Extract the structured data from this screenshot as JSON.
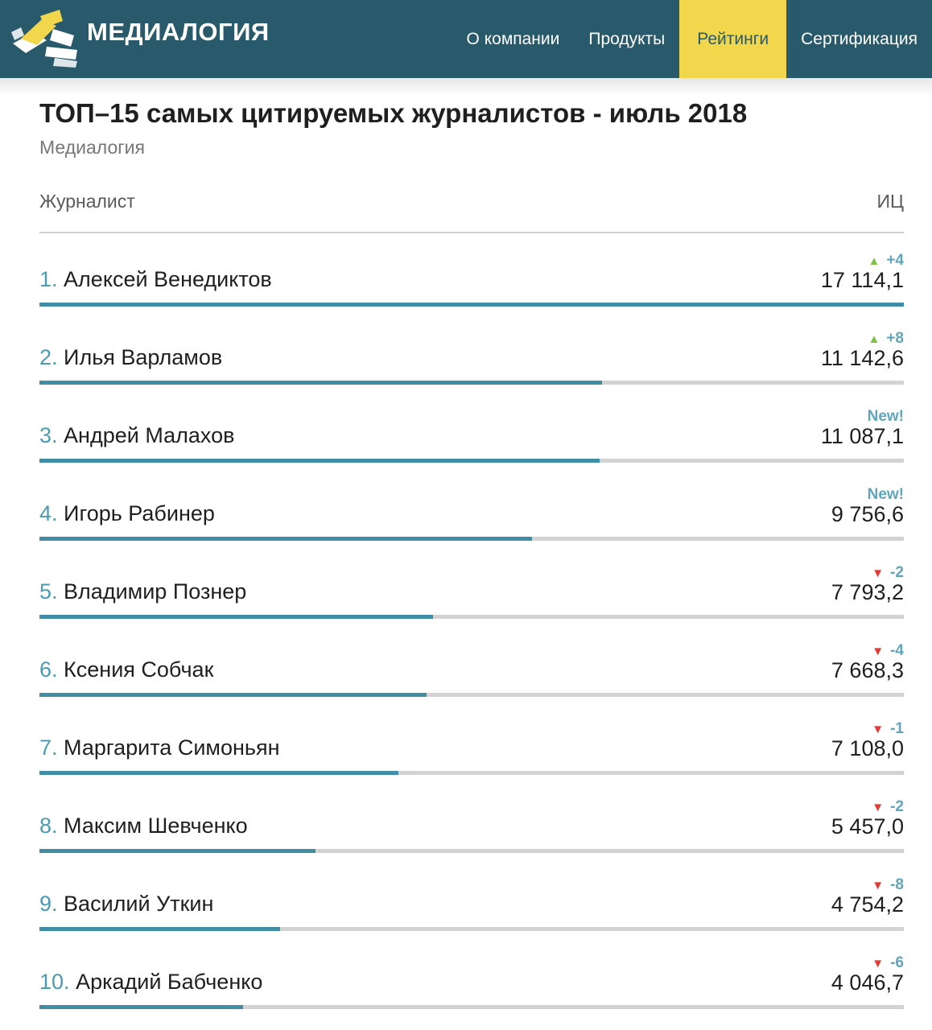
{
  "brand": {
    "name": "МЕДИАЛОГИЯ"
  },
  "nav": [
    {
      "label": "О компании"
    },
    {
      "label": "Продукты"
    },
    {
      "label": "Рейтинги",
      "active": true
    },
    {
      "label": "Сертификация"
    }
  ],
  "page": {
    "title": "ТОП–15 самых цитируемых журналистов - июль 2018",
    "subtitle": "Медиалогия"
  },
  "table": {
    "col_journalist": "Журналист",
    "col_index": "ИЦ"
  },
  "rows": [
    {
      "rank": "1.",
      "name": "Алексей Венедиктов",
      "value": "17 114,1",
      "change": "+4",
      "trend": "up",
      "share": 1.0
    },
    {
      "rank": "2.",
      "name": "Илья Варламов",
      "value": "11 142,6",
      "change": "+8",
      "trend": "up",
      "share": 0.651
    },
    {
      "rank": "3.",
      "name": "Андрей Малахов",
      "value": "11 087,1",
      "change": "New!",
      "trend": "new",
      "share": 0.648
    },
    {
      "rank": "4.",
      "name": "Игорь Рабинер",
      "value": "9 756,6",
      "change": "New!",
      "trend": "new",
      "share": 0.57
    },
    {
      "rank": "5.",
      "name": "Владимир Познер",
      "value": "7 793,2",
      "change": "-2",
      "trend": "down",
      "share": 0.455
    },
    {
      "rank": "6.",
      "name": "Ксения Собчак",
      "value": "7 668,3",
      "change": "-4",
      "trend": "down",
      "share": 0.448
    },
    {
      "rank": "7.",
      "name": "Маргарита Симоньян",
      "value": "7 108,0",
      "change": "-1",
      "trend": "down",
      "share": 0.415
    },
    {
      "rank": "8.",
      "name": "Максим Шевченко",
      "value": "5 457,0",
      "change": "-2",
      "trend": "down",
      "share": 0.319
    },
    {
      "rank": "9.",
      "name": "Василий Уткин",
      "value": "4 754,2",
      "change": "-8",
      "trend": "down",
      "share": 0.278
    },
    {
      "rank": "10.",
      "name": "Аркадий Бабченко",
      "value": "4 046,7",
      "change": "-6",
      "trend": "down",
      "share": 0.236
    }
  ],
  "colors": {
    "header_bg": "#285a6b",
    "active_tab": "#f2d64b",
    "bar": "#3f8ea5",
    "bar_track": "#d3d3d3",
    "up": "#7cc142",
    "down": "#e53935",
    "change_text": "#5fa6bd"
  }
}
